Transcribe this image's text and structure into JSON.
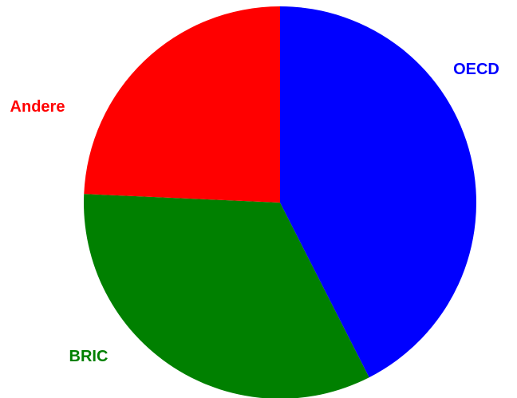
{
  "chart_data": {
    "type": "pie",
    "slices": [
      {
        "label": "OECD",
        "value": 42.5,
        "color": "#0000ff"
      },
      {
        "label": "BRIC",
        "value": 33.2,
        "color": "#008000"
      },
      {
        "label": "Andere",
        "value": 24.3,
        "color": "#ff0000"
      }
    ],
    "start_angle_deg": 0,
    "direction": "clockwise",
    "legend": "none",
    "labels_outside": true
  }
}
